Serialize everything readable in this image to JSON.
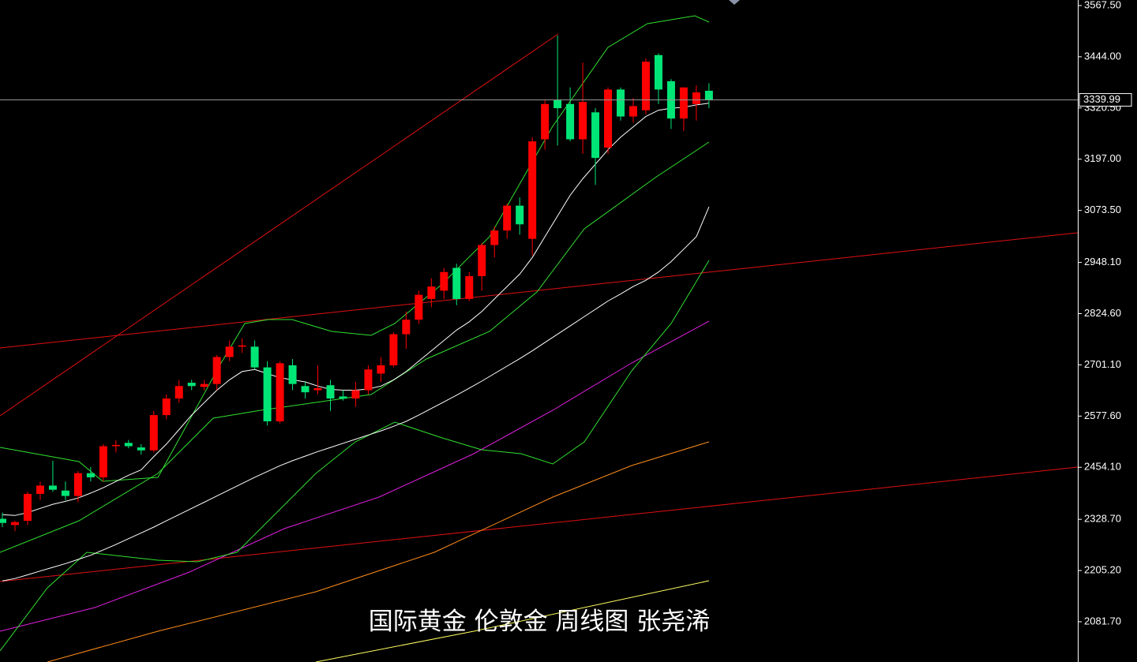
{
  "chart_data": {
    "type": "candlestick",
    "title": "国际黄金 伦敦金 周线图 张尧浠",
    "categories": [
      null,
      null,
      null,
      null,
      null,
      null,
      null,
      null,
      null,
      null,
      null,
      null,
      null,
      null,
      null,
      null,
      null,
      null,
      null,
      null,
      null,
      null,
      null,
      null,
      null,
      null,
      null,
      null,
      null,
      null,
      null,
      null,
      null,
      null,
      null,
      null,
      null,
      null,
      null,
      null,
      null,
      null,
      null,
      null,
      null,
      null,
      null,
      null,
      null,
      null,
      null,
      null,
      null,
      null,
      null,
      null,
      null
    ],
    "open": [
      2330,
      2315,
      2325,
      2390,
      2410,
      2398,
      2385,
      2440,
      2430,
      2505,
      2513,
      2502,
      2495,
      2580,
      2620,
      2658,
      2648,
      2655,
      2720,
      2745,
      2745,
      2695,
      2565,
      2700,
      2650,
      2640,
      2652,
      2625,
      2620,
      2640,
      2680,
      2700,
      2775,
      2810,
      2860,
      2880,
      2935,
      2860,
      2915,
      2990,
      3025,
      3085,
      3005,
      3245,
      3340,
      3330,
      3245,
      3310,
      3225,
      3365,
      3300,
      3315,
      3448,
      3385,
      3295,
      3330,
      3362
    ],
    "high": [
      2345,
      2325,
      2395,
      2420,
      2470,
      2420,
      2445,
      2455,
      2510,
      2520,
      2520,
      2510,
      2590,
      2630,
      2665,
      2665,
      2665,
      2725,
      2760,
      2765,
      2760,
      2710,
      2710,
      2715,
      2660,
      2700,
      2665,
      2640,
      2660,
      2700,
      2720,
      2780,
      2830,
      2880,
      2910,
      2935,
      2945,
      2925,
      2995,
      3035,
      3090,
      3105,
      3250,
      3340,
      3495,
      3370,
      3430,
      3320,
      3370,
      3370,
      3345,
      3440,
      3452,
      3390,
      3370,
      3375,
      3380
    ],
    "low": [
      2310,
      2300,
      2315,
      2375,
      2395,
      2375,
      2370,
      2420,
      2420,
      2490,
      2500,
      2485,
      2490,
      2570,
      2610,
      2640,
      2640,
      2640,
      2710,
      2730,
      2690,
      2555,
      2560,
      2640,
      2620,
      2630,
      2590,
      2615,
      2600,
      2630,
      2660,
      2695,
      2740,
      2800,
      2840,
      2860,
      2845,
      2855,
      2880,
      2960,
      3005,
      3015,
      2965,
      3220,
      3230,
      3240,
      3210,
      3135,
      3210,
      3290,
      3285,
      3305,
      3330,
      3270,
      3265,
      3290,
      3320
    ],
    "close": [
      2320,
      2322,
      2390,
      2410,
      2400,
      2385,
      2440,
      2430,
      2505,
      2508,
      2505,
      2495,
      2580,
      2620,
      2650,
      2650,
      2655,
      2720,
      2745,
      2748,
      2695,
      2565,
      2705,
      2655,
      2635,
      2645,
      2620,
      2620,
      2640,
      2690,
      2700,
      2775,
      2810,
      2870,
      2890,
      2925,
      2860,
      2915,
      2990,
      3025,
      3085,
      3040,
      3240,
      3330,
      3320,
      3245,
      3335,
      3200,
      3365,
      3300,
      3325,
      3432,
      3365,
      3295,
      3370,
      3358,
      3340
    ],
    "up_color": "#ff0000",
    "down_color": "#00e676",
    "lines": [
      {
        "color": "#ffffff",
        "values": [
          2340,
          2338,
          2345,
          2355,
          2365,
          2372,
          2380,
          2392,
          2405,
          2420,
          2435,
          2448,
          2480,
          2510,
          2545,
          2580,
          2610,
          2640,
          2665,
          2685,
          2690,
          2680,
          2670,
          2665,
          2660,
          2650,
          2642,
          2640,
          2640,
          2643,
          2650,
          2665,
          2685,
          2710,
          2735,
          2760,
          2785,
          2805,
          2830,
          2860,
          2890,
          2920,
          2960,
          3010,
          3060,
          3110,
          3150,
          3185,
          3220,
          3250,
          3275,
          3300,
          3315,
          3320,
          3322,
          3328,
          3332
        ]
      },
      {
        "color": "#ffffff",
        "values": [
          2180,
          2186,
          2195,
          2204,
          2213,
          2222,
          2232,
          2242,
          2255,
          2268,
          2282,
          2296,
          2310,
          2325,
          2340,
          2355,
          2370,
          2385,
          2400,
          2415,
          2430,
          2444,
          2458,
          2470,
          2481,
          2492,
          2502,
          2512,
          2522,
          2532,
          2542,
          2553,
          2565,
          2580,
          2596,
          2612,
          2628,
          2645,
          2662,
          2680,
          2698,
          2716,
          2735,
          2755,
          2775,
          2795,
          2815,
          2835,
          2855,
          2872,
          2890,
          2905,
          2925,
          2950,
          2980,
          3010,
          3082
        ]
      }
    ],
    "last_price": 3339.99,
    "ylim": [
      1984.7,
      3580.8
    ],
    "yticks": [
      {
        "value": 3567.5,
        "label": "3567.50"
      },
      {
        "value": 3444.0,
        "label": "3444.00"
      },
      {
        "value": 3320.5,
        "label": "3320.50"
      },
      {
        "value": 3197.0,
        "label": "3197.00"
      },
      {
        "value": 3073.5,
        "label": "3073.50"
      },
      {
        "value": 2948.1,
        "label": "2948.10"
      },
      {
        "value": 2824.6,
        "label": "2824.60"
      },
      {
        "value": 2701.1,
        "label": "2701.10"
      },
      {
        "value": 2577.6,
        "label": "2577.60"
      },
      {
        "value": 2454.1,
        "label": "2454.10"
      },
      {
        "value": 2328.7,
        "label": "2328.70"
      },
      {
        "value": 2205.2,
        "label": "2205.20"
      },
      {
        "value": 2081.7,
        "label": "2081.70"
      }
    ]
  }
}
